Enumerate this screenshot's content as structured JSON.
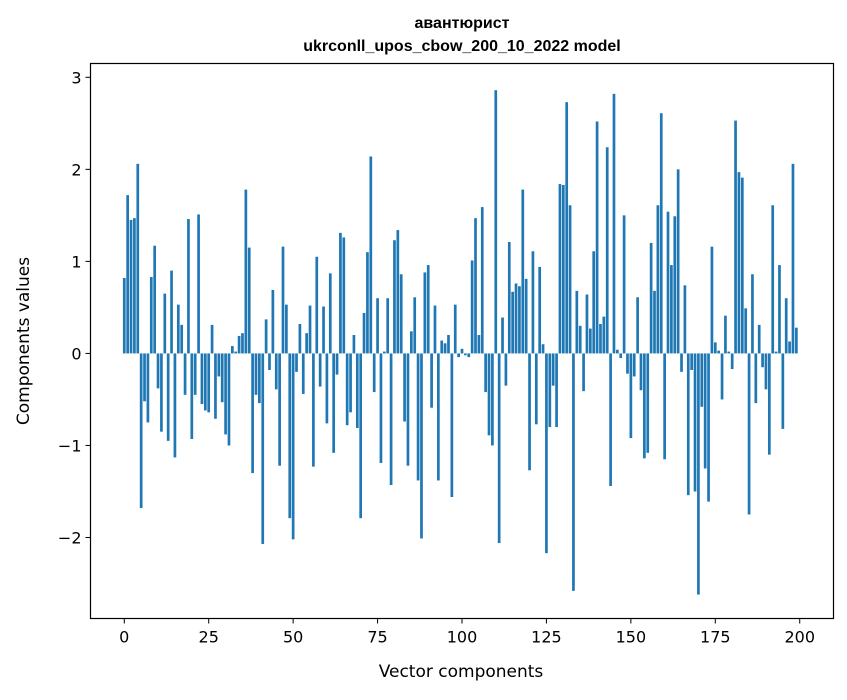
{
  "chart_data": {
    "type": "bar",
    "title": [
      "авантюрист",
      "ukrconll_upos_cbow_200_10_2022 model"
    ],
    "xlabel": "Vector components",
    "ylabel": "Components values",
    "xlim": [
      -10,
      210
    ],
    "ylim": [
      -2.88,
      3.15
    ],
    "xticks": [
      0,
      25,
      50,
      75,
      100,
      125,
      150,
      175,
      200
    ],
    "xtick_labels": [
      "0",
      "25",
      "50",
      "75",
      "100",
      "125",
      "150",
      "175",
      "200"
    ],
    "yticks": [
      -2,
      -1,
      0,
      1,
      2,
      3
    ],
    "ytick_labels": [
      "−2",
      "−1",
      "0",
      "1",
      "2",
      "3"
    ],
    "grid": false,
    "bar_color": "#1f77b4",
    "values": [
      0.82,
      1.72,
      1.45,
      1.47,
      2.06,
      -1.68,
      -0.52,
      -0.75,
      0.83,
      1.17,
      -0.38,
      -0.85,
      0.65,
      -0.95,
      0.9,
      -1.13,
      0.53,
      0.31,
      -0.45,
      1.46,
      -0.93,
      -0.45,
      1.51,
      -0.55,
      -0.62,
      -0.64,
      0.31,
      -0.71,
      -0.25,
      -0.53,
      -0.88,
      -1.0,
      0.08,
      0.02,
      0.19,
      0.22,
      1.78,
      1.15,
      -1.3,
      -0.45,
      -0.54,
      -2.07,
      0.37,
      -0.18,
      0.69,
      -0.39,
      -1.22,
      1.16,
      0.53,
      -1.79,
      -2.02,
      -0.2,
      0.32,
      -0.44,
      0.22,
      0.52,
      -1.23,
      1.05,
      -0.36,
      0.51,
      -0.76,
      0.87,
      -1.08,
      -0.23,
      1.31,
      1.26,
      -0.78,
      -0.64,
      0.2,
      -0.81,
      -1.79,
      0.44,
      1.1,
      2.14,
      -0.42,
      0.6,
      -1.19,
      0.02,
      0.6,
      -1.43,
      1.23,
      1.34,
      0.86,
      -0.74,
      -1.22,
      0.24,
      0.61,
      -1.38,
      -2.01,
      0.88,
      0.96,
      -0.59,
      0.52,
      -1.38,
      0.14,
      0.11,
      0.2,
      -1.56,
      0.53,
      -0.04,
      0.05,
      -0.02,
      -0.04,
      1.01,
      1.47,
      0.2,
      1.59,
      -0.42,
      -0.89,
      -1.0,
      2.86,
      -2.06,
      0.39,
      -0.35,
      1.21,
      0.67,
      0.76,
      0.73,
      1.78,
      0.81,
      -1.27,
      1.11,
      -0.77,
      0.94,
      0.1,
      -2.17,
      -0.8,
      -0.35,
      -0.8,
      1.84,
      1.83,
      2.73,
      1.61,
      -2.58,
      0.68,
      0.3,
      -0.41,
      0.64,
      0.27,
      1.11,
      2.52,
      0.32,
      0.4,
      2.24,
      -1.44,
      2.82,
      0.04,
      -0.05,
      1.5,
      -0.22,
      -0.92,
      -0.25,
      0.61,
      -0.4,
      -1.14,
      -1.08,
      1.2,
      0.68,
      1.61,
      2.61,
      -1.15,
      1.54,
      0.96,
      1.49,
      2.0,
      -0.2,
      0.74,
      -1.54,
      -0.18,
      -1.5,
      -2.62,
      -0.58,
      -1.25,
      -1.61,
      1.16,
      0.12,
      0.03,
      -0.5,
      0.41,
      0.02,
      -0.17,
      2.53,
      1.97,
      1.91,
      0.49,
      -1.75,
      0.86,
      -0.54,
      0.31,
      -0.15,
      -0.39,
      -1.1,
      1.61,
      0.02,
      0.96,
      -0.82,
      0.6,
      0.13,
      2.06,
      0.28
    ]
  }
}
